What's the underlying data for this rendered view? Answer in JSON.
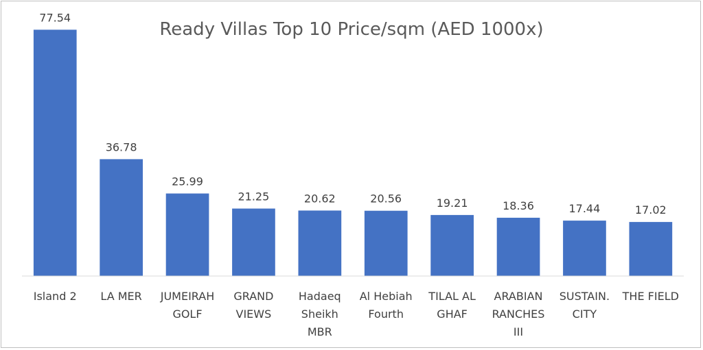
{
  "chart_data": {
    "type": "bar",
    "title": "Ready Villas Top 10 Price/sqm (AED 1000x)",
    "categories": [
      "Island 2",
      "LA MER",
      "JUMEIRAH GOLF",
      "GRAND VIEWS",
      "Hadaeq Sheikh MBR",
      "Al Hebiah Fourth",
      "TILAL AL GHAF",
      "ARABIAN RANCHES III",
      "SUSTAIN. CITY",
      "THE FIELD"
    ],
    "category_lines": [
      [
        "Island 2"
      ],
      [
        "LA MER"
      ],
      [
        "JUMEIRAH",
        "GOLF"
      ],
      [
        "GRAND",
        "VIEWS"
      ],
      [
        "Hadaeq",
        "Sheikh",
        "MBR"
      ],
      [
        "Al Hebiah",
        "Fourth"
      ],
      [
        "TILAL AL",
        "GHAF"
      ],
      [
        "ARABIAN",
        "RANCHES",
        "III"
      ],
      [
        "SUSTAIN.",
        "CITY"
      ],
      [
        "THE FIELD"
      ]
    ],
    "values": [
      77.54,
      36.78,
      25.99,
      21.25,
      20.62,
      20.56,
      19.21,
      18.36,
      17.44,
      17.02
    ],
    "data_labels": [
      "77.54",
      "36.78",
      "25.99",
      "21.25",
      "20.62",
      "20.56",
      "19.21",
      "18.36",
      "17.44",
      "17.02"
    ],
    "ylim": [
      0,
      80
    ],
    "grid": false,
    "legend": "none",
    "xlabel": "",
    "ylabel": "",
    "colors": {
      "bar": "#4472C4",
      "axis": "#d9d9d9",
      "text": "#404040",
      "title": "#595959"
    }
  }
}
